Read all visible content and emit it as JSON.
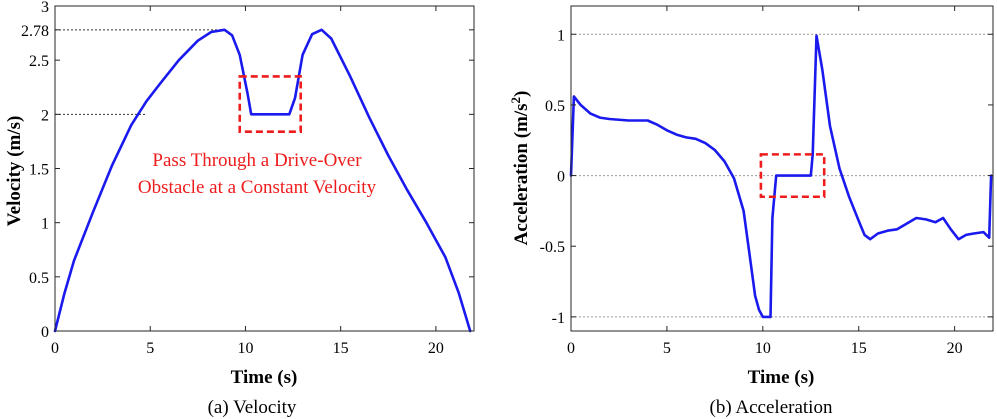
{
  "chart_data": [
    {
      "type": "line",
      "caption": "(a) Velocity",
      "xlabel": "Time (s)",
      "ylabel": "Velocity (m/s)",
      "xlim": [
        0,
        22
      ],
      "ylim": [
        0,
        3
      ],
      "xticks": [
        0,
        5,
        10,
        15,
        20
      ],
      "yticks": [
        0,
        0.5,
        1,
        1.5,
        2,
        2.5,
        2.78,
        3
      ],
      "ytick_labels": [
        "0",
        "0.5",
        "1",
        "1.5",
        "2",
        "2.5",
        "2.78",
        "3"
      ],
      "reference_lines": [
        2.78,
        2.0
      ],
      "highlight_region": {
        "x": [
          9.7,
          12.9
        ],
        "y": [
          1.84,
          2.35
        ]
      },
      "annotation": [
        "Pass Through a Drive-Over",
        "Obstacle at a Constant Velocity"
      ],
      "series": [
        {
          "name": "Velocity",
          "color": "#1a1aee",
          "x": [
            0,
            0.5,
            1,
            2,
            3,
            4,
            4.8,
            5.5,
            6.5,
            7.5,
            8.2,
            8.9,
            9.3,
            9.7,
            10.1,
            10.3,
            12.3,
            12.6,
            13.0,
            13.5,
            14.0,
            14.5,
            15.5,
            16.5,
            17.5,
            18.5,
            19.5,
            20.5,
            21.2,
            21.8
          ],
          "values": [
            0,
            0.35,
            0.65,
            1.1,
            1.53,
            1.9,
            2.12,
            2.28,
            2.5,
            2.68,
            2.76,
            2.78,
            2.73,
            2.55,
            2.2,
            2.0,
            2.0,
            2.15,
            2.55,
            2.74,
            2.78,
            2.7,
            2.35,
            1.97,
            1.62,
            1.3,
            1.0,
            0.68,
            0.35,
            0
          ]
        }
      ]
    },
    {
      "type": "line",
      "caption": "(b) Acceleration",
      "xlabel": "Time (s)",
      "ylabel": "Acceleration (m/s",
      "ylabel_sup": "2",
      "ylabel_close": ")",
      "xlim": [
        0,
        22
      ],
      "ylim": [
        -1.1,
        1.2
      ],
      "xticks": [
        0,
        5,
        10,
        15,
        20
      ],
      "yticks": [
        -1,
        -0.5,
        0,
        0.5,
        1
      ],
      "ytick_labels": [
        "-1",
        "-0.5",
        "0",
        "0.5",
        "1"
      ],
      "reference_lines": [
        1,
        0,
        -1
      ],
      "highlight_region": {
        "x": [
          9.9,
          13.2
        ],
        "y": [
          -0.15,
          0.15
        ]
      },
      "series": [
        {
          "name": "Acceleration",
          "color": "#1a1aee",
          "x": [
            0,
            0.15,
            0.5,
            1,
            1.5,
            2,
            3,
            4,
            4.5,
            5,
            5.5,
            6,
            6.5,
            7,
            7.5,
            8,
            8.5,
            9,
            9.3,
            9.6,
            9.8,
            10.0,
            10.1,
            10.4,
            10.5,
            10.7,
            12.5,
            12.6,
            12.8,
            13.1,
            13.5,
            14,
            14.5,
            15,
            15.3,
            15.6,
            16,
            16.5,
            17,
            17.5,
            18,
            18.5,
            19,
            19.4,
            19.8,
            20.2,
            20.6,
            21,
            21.5,
            21.8,
            21.9
          ],
          "values": [
            0,
            0.56,
            0.5,
            0.44,
            0.41,
            0.4,
            0.39,
            0.39,
            0.36,
            0.32,
            0.29,
            0.27,
            0.26,
            0.23,
            0.18,
            0.1,
            -0.02,
            -0.25,
            -0.55,
            -0.85,
            -0.95,
            -1.0,
            -1.0,
            -1.0,
            -0.3,
            0,
            0,
            0.15,
            0.99,
            0.75,
            0.35,
            0.05,
            -0.15,
            -0.32,
            -0.42,
            -0.45,
            -0.41,
            -0.39,
            -0.38,
            -0.34,
            -0.3,
            -0.31,
            -0.33,
            -0.3,
            -0.38,
            -0.45,
            -0.42,
            -0.41,
            -0.4,
            -0.44,
            0
          ]
        }
      ]
    }
  ]
}
